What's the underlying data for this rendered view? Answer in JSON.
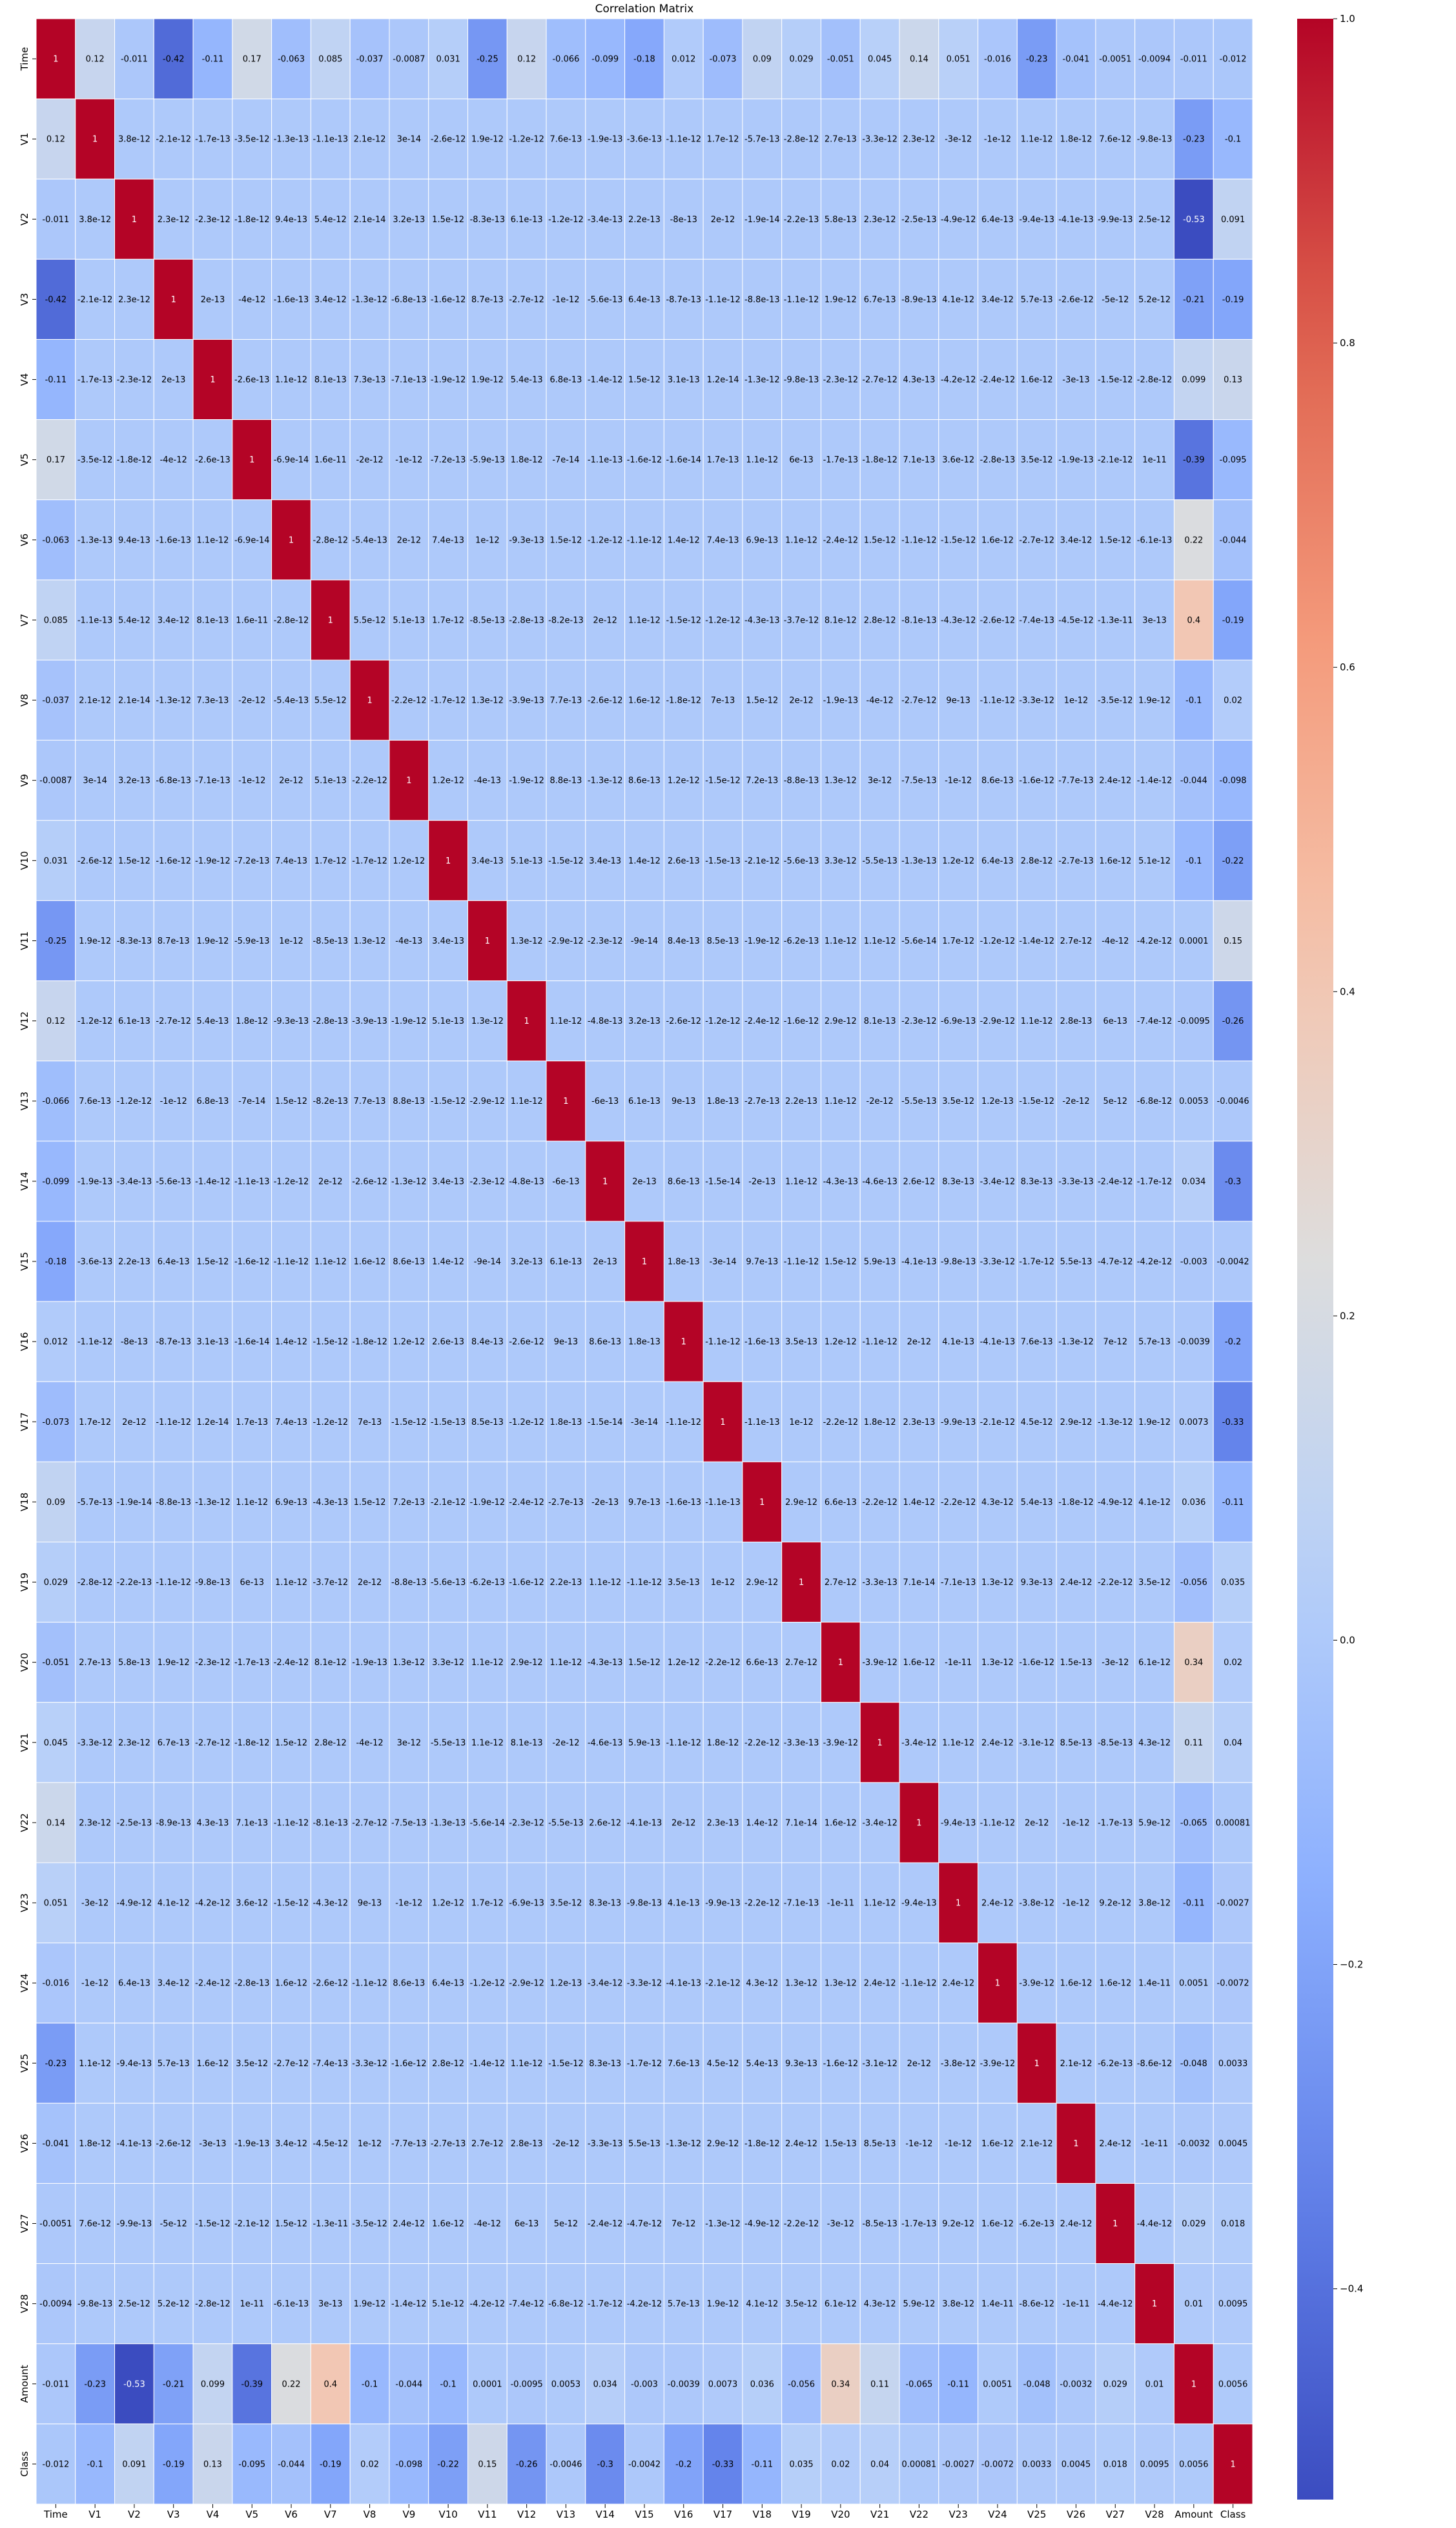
{
  "chart_data": {
    "type": "heatmap",
    "title": "Correlation Matrix",
    "xlabel": "",
    "ylabel": "",
    "labels": [
      "Time",
      "V1",
      "V2",
      "V3",
      "V4",
      "V5",
      "V6",
      "V7",
      "V8",
      "V9",
      "V10",
      "V11",
      "V12",
      "V13",
      "V14",
      "V15",
      "V16",
      "V17",
      "V18",
      "V19",
      "V20",
      "V21",
      "V22",
      "V23",
      "V24",
      "V25",
      "V26",
      "V27",
      "V28",
      "Amount",
      "Class"
    ],
    "colormap": "coolwarm",
    "vmin": -0.53,
    "vmax": 1,
    "colorbar_ticks": [
      1.0,
      0.8,
      0.6,
      0.4,
      0.2,
      0.0,
      -0.2,
      -0.4
    ],
    "colorbar_tick_labels": [
      "1.0",
      "0.8",
      "0.6",
      "0.4",
      "0.2",
      "0.0",
      "−0.2",
      "−0.4"
    ],
    "annotations": [
      [
        "1",
        "0.12",
        "-0.011",
        "-0.42",
        "-0.11",
        "0.17",
        "-0.063",
        "0.085",
        "-0.037",
        "-0.0087",
        "0.031",
        "-0.25",
        "0.12",
        "-0.066",
        "-0.099",
        "-0.18",
        "0.012",
        "-0.073",
        "0.09",
        "0.029",
        "-0.051",
        "0.045",
        "0.14",
        "0.051",
        "-0.016",
        "-0.23",
        "-0.041",
        "-0.0051",
        "-0.0094",
        "-0.011",
        "-0.012"
      ],
      [
        "0.12",
        "1",
        "3.8e-12",
        "-2.1e-12",
        "-1.7e-13",
        "-3.5e-12",
        "-1.3e-13",
        "-1.1e-13",
        "2.1e-12",
        "3e-14",
        "-2.6e-12",
        "1.9e-12",
        "-1.2e-12",
        "7.6e-13",
        "-1.9e-13",
        "-3.6e-13",
        "-1.1e-12",
        "1.7e-12",
        "-5.7e-13",
        "-2.8e-12",
        "2.7e-13",
        "-3.3e-12",
        "2.3e-12",
        "-3e-12",
        "-1e-12",
        "1.1e-12",
        "1.8e-12",
        "7.6e-12",
        "-9.8e-13",
        "-0.23",
        "-0.1"
      ],
      [
        "-0.011",
        "3.8e-12",
        "1",
        "2.3e-12",
        "-2.3e-12",
        "-1.8e-12",
        "9.4e-13",
        "5.4e-12",
        "2.1e-14",
        "3.2e-13",
        "1.5e-12",
        "-8.3e-13",
        "6.1e-13",
        "-1.2e-12",
        "-3.4e-13",
        "2.2e-13",
        "-8e-13",
        "2e-12",
        "-1.9e-14",
        "-2.2e-13",
        "5.8e-13",
        "2.3e-12",
        "-2.5e-13",
        "-4.9e-12",
        "6.4e-13",
        "-9.4e-13",
        "-4.1e-13",
        "-9.9e-13",
        "2.5e-12",
        "-0.53",
        "0.091"
      ],
      [
        "-0.42",
        "-2.1e-12",
        "2.3e-12",
        "1",
        "2e-13",
        "-4e-12",
        "-1.6e-13",
        "3.4e-12",
        "-1.3e-12",
        "-6.8e-13",
        "-1.6e-12",
        "8.7e-13",
        "-2.7e-12",
        "-1e-12",
        "-5.6e-13",
        "6.4e-13",
        "-8.7e-13",
        "-1.1e-12",
        "-8.8e-13",
        "-1.1e-12",
        "1.9e-12",
        "6.7e-13",
        "-8.9e-13",
        "4.1e-12",
        "3.4e-12",
        "5.7e-13",
        "-2.6e-12",
        "-5e-12",
        "5.2e-12",
        "-0.21",
        "-0.19"
      ],
      [
        "-0.11",
        "-1.7e-13",
        "-2.3e-12",
        "2e-13",
        "1",
        "-2.6e-13",
        "1.1e-12",
        "8.1e-13",
        "7.3e-13",
        "-7.1e-13",
        "-1.9e-12",
        "1.9e-12",
        "5.4e-13",
        "6.8e-13",
        "-1.4e-12",
        "1.5e-12",
        "3.1e-13",
        "1.2e-14",
        "-1.3e-12",
        "-9.8e-13",
        "-2.3e-12",
        "-2.7e-12",
        "4.3e-13",
        "-4.2e-12",
        "-2.4e-12",
        "1.6e-12",
        "-3e-13",
        "-1.5e-12",
        "-2.8e-12",
        "0.099",
        "0.13"
      ],
      [
        "0.17",
        "-3.5e-12",
        "-1.8e-12",
        "-4e-12",
        "-2.6e-13",
        "1",
        "-6.9e-14",
        "1.6e-11",
        "-2e-12",
        "-1e-12",
        "-7.2e-13",
        "-5.9e-13",
        "1.8e-12",
        "-7e-14",
        "-1.1e-13",
        "-1.6e-12",
        "-1.6e-14",
        "1.7e-13",
        "1.1e-12",
        "6e-13",
        "-1.7e-13",
        "-1.8e-12",
        "7.1e-13",
        "3.6e-12",
        "-2.8e-13",
        "3.5e-12",
        "-1.9e-13",
        "-2.1e-12",
        "1e-11",
        "-0.39",
        "-0.095"
      ],
      [
        "-0.063",
        "-1.3e-13",
        "9.4e-13",
        "-1.6e-13",
        "1.1e-12",
        "-6.9e-14",
        "1",
        "-2.8e-12",
        "-5.4e-13",
        "2e-12",
        "7.4e-13",
        "1e-12",
        "-9.3e-13",
        "1.5e-12",
        "-1.2e-12",
        "-1.1e-12",
        "1.4e-12",
        "7.4e-13",
        "6.9e-13",
        "1.1e-12",
        "-2.4e-12",
        "1.5e-12",
        "-1.1e-12",
        "-1.5e-12",
        "1.6e-12",
        "-2.7e-12",
        "3.4e-12",
        "1.5e-12",
        "-6.1e-13",
        "0.22",
        "-0.044"
      ],
      [
        "0.085",
        "-1.1e-13",
        "5.4e-12",
        "3.4e-12",
        "8.1e-13",
        "1.6e-11",
        "-2.8e-12",
        "1",
        "5.5e-12",
        "5.1e-13",
        "1.7e-12",
        "-8.5e-13",
        "-2.8e-13",
        "-8.2e-13",
        "2e-12",
        "1.1e-12",
        "-1.5e-12",
        "-1.2e-12",
        "-4.3e-13",
        "-3.7e-12",
        "8.1e-12",
        "2.8e-12",
        "-8.1e-13",
        "-4.3e-12",
        "-2.6e-12",
        "-7.4e-13",
        "-4.5e-12",
        "-1.3e-11",
        "3e-13",
        "0.4",
        "-0.19"
      ],
      [
        "-0.037",
        "2.1e-12",
        "2.1e-14",
        "-1.3e-12",
        "7.3e-13",
        "-2e-12",
        "-5.4e-13",
        "5.5e-12",
        "1",
        "-2.2e-12",
        "-1.7e-12",
        "1.3e-12",
        "-3.9e-13",
        "7.7e-13",
        "-2.6e-12",
        "1.6e-12",
        "-1.8e-12",
        "7e-13",
        "1.5e-12",
        "2e-12",
        "-1.9e-13",
        "-4e-12",
        "-2.7e-12",
        "9e-13",
        "-1.1e-12",
        "-3.3e-12",
        "1e-12",
        "-3.5e-12",
        "1.9e-12",
        "-0.1",
        "0.02"
      ],
      [
        "-0.0087",
        "3e-14",
        "3.2e-13",
        "-6.8e-13",
        "-7.1e-13",
        "-1e-12",
        "2e-12",
        "5.1e-13",
        "-2.2e-12",
        "1",
        "1.2e-12",
        "-4e-13",
        "-1.9e-12",
        "8.8e-13",
        "-1.3e-12",
        "8.6e-13",
        "1.2e-12",
        "-1.5e-12",
        "7.2e-13",
        "-8.8e-13",
        "1.3e-12",
        "3e-12",
        "-7.5e-13",
        "-1e-12",
        "8.6e-13",
        "-1.6e-12",
        "-7.7e-13",
        "2.4e-12",
        "-1.4e-12",
        "-0.044",
        "-0.098"
      ],
      [
        "0.031",
        "-2.6e-12",
        "1.5e-12",
        "-1.6e-12",
        "-1.9e-12",
        "-7.2e-13",
        "7.4e-13",
        "1.7e-12",
        "-1.7e-12",
        "1.2e-12",
        "1",
        "3.4e-13",
        "5.1e-13",
        "-1.5e-12",
        "3.4e-13",
        "1.4e-12",
        "2.6e-13",
        "-1.5e-13",
        "-2.1e-12",
        "-5.6e-13",
        "3.3e-12",
        "-5.5e-13",
        "-1.3e-13",
        "1.2e-12",
        "6.4e-13",
        "2.8e-12",
        "-2.7e-13",
        "1.6e-12",
        "5.1e-12",
        "-0.1",
        "-0.22"
      ],
      [
        "-0.25",
        "1.9e-12",
        "-8.3e-13",
        "8.7e-13",
        "1.9e-12",
        "-5.9e-13",
        "1e-12",
        "-8.5e-13",
        "1.3e-12",
        "-4e-13",
        "3.4e-13",
        "1",
        "1.3e-12",
        "-2.9e-12",
        "-2.3e-12",
        "-9e-14",
        "8.4e-13",
        "8.5e-13",
        "-1.9e-12",
        "-6.2e-13",
        "1.1e-12",
        "1.1e-12",
        "-5.6e-14",
        "1.7e-12",
        "-1.2e-12",
        "-1.4e-12",
        "2.7e-12",
        "-4e-12",
        "-4.2e-12",
        "0.0001",
        "0.15"
      ],
      [
        "0.12",
        "-1.2e-12",
        "6.1e-13",
        "-2.7e-12",
        "5.4e-13",
        "1.8e-12",
        "-9.3e-13",
        "-2.8e-13",
        "-3.9e-13",
        "-1.9e-12",
        "5.1e-13",
        "1.3e-12",
        "1",
        "1.1e-12",
        "-4.8e-13",
        "3.2e-13",
        "-2.6e-12",
        "-1.2e-12",
        "-2.4e-12",
        "-1.6e-12",
        "2.9e-12",
        "8.1e-13",
        "-2.3e-12",
        "-6.9e-13",
        "-2.9e-12",
        "1.1e-12",
        "2.8e-13",
        "6e-13",
        "-7.4e-12",
        "-0.0095",
        "-0.26"
      ],
      [
        "-0.066",
        "7.6e-13",
        "-1.2e-12",
        "-1e-12",
        "6.8e-13",
        "-7e-14",
        "1.5e-12",
        "-8.2e-13",
        "7.7e-13",
        "8.8e-13",
        "-1.5e-12",
        "-2.9e-12",
        "1.1e-12",
        "1",
        "-6e-13",
        "6.1e-13",
        "9e-13",
        "1.8e-13",
        "-2.7e-13",
        "2.2e-13",
        "1.1e-12",
        "-2e-12",
        "-5.5e-13",
        "3.5e-12",
        "1.2e-13",
        "-1.5e-12",
        "-2e-12",
        "5e-12",
        "-6.8e-12",
        "0.0053",
        "-0.0046"
      ],
      [
        "-0.099",
        "-1.9e-13",
        "-3.4e-13",
        "-5.6e-13",
        "-1.4e-12",
        "-1.1e-13",
        "-1.2e-12",
        "2e-12",
        "-2.6e-12",
        "-1.3e-12",
        "3.4e-13",
        "-2.3e-12",
        "-4.8e-13",
        "-6e-13",
        "1",
        "2e-13",
        "8.6e-13",
        "-1.5e-14",
        "-2e-13",
        "1.1e-12",
        "-4.3e-13",
        "-4.6e-13",
        "2.6e-12",
        "8.3e-13",
        "-3.4e-12",
        "8.3e-13",
        "-3.3e-13",
        "-2.4e-12",
        "-1.7e-12",
        "0.034",
        "-0.3"
      ],
      [
        "-0.18",
        "-3.6e-13",
        "2.2e-13",
        "6.4e-13",
        "1.5e-12",
        "-1.6e-12",
        "-1.1e-12",
        "1.1e-12",
        "1.6e-12",
        "8.6e-13",
        "1.4e-12",
        "-9e-14",
        "3.2e-13",
        "6.1e-13",
        "2e-13",
        "1",
        "1.8e-13",
        "-3e-14",
        "9.7e-13",
        "-1.1e-12",
        "1.5e-12",
        "5.9e-13",
        "-4.1e-13",
        "-9.8e-13",
        "-3.3e-12",
        "-1.7e-12",
        "5.5e-13",
        "-4.7e-12",
        "-4.2e-12",
        "-0.003",
        "-0.0042"
      ],
      [
        "0.012",
        "-1.1e-12",
        "-8e-13",
        "-8.7e-13",
        "3.1e-13",
        "-1.6e-14",
        "1.4e-12",
        "-1.5e-12",
        "-1.8e-12",
        "1.2e-12",
        "2.6e-13",
        "8.4e-13",
        "-2.6e-12",
        "9e-13",
        "8.6e-13",
        "1.8e-13",
        "1",
        "-1.1e-12",
        "-1.6e-13",
        "3.5e-13",
        "1.2e-12",
        "-1.1e-12",
        "2e-12",
        "4.1e-13",
        "-4.1e-13",
        "7.6e-13",
        "-1.3e-12",
        "7e-12",
        "5.7e-13",
        "-0.0039",
        "-0.2"
      ],
      [
        "-0.073",
        "1.7e-12",
        "2e-12",
        "-1.1e-12",
        "1.2e-14",
        "1.7e-13",
        "7.4e-13",
        "-1.2e-12",
        "7e-13",
        "-1.5e-12",
        "-1.5e-13",
        "8.5e-13",
        "-1.2e-12",
        "1.8e-13",
        "-1.5e-14",
        "-3e-14",
        "-1.1e-12",
        "1",
        "-1.1e-13",
        "1e-12",
        "-2.2e-12",
        "1.8e-12",
        "2.3e-13",
        "-9.9e-13",
        "-2.1e-12",
        "4.5e-12",
        "2.9e-12",
        "-1.3e-12",
        "1.9e-12",
        "0.0073",
        "-0.33"
      ],
      [
        "0.09",
        "-5.7e-13",
        "-1.9e-14",
        "-8.8e-13",
        "-1.3e-12",
        "1.1e-12",
        "6.9e-13",
        "-4.3e-13",
        "1.5e-12",
        "7.2e-13",
        "-2.1e-12",
        "-1.9e-12",
        "-2.4e-12",
        "-2.7e-13",
        "-2e-13",
        "9.7e-13",
        "-1.6e-13",
        "-1.1e-13",
        "1",
        "2.9e-12",
        "6.6e-13",
        "-2.2e-12",
        "1.4e-12",
        "-2.2e-12",
        "4.3e-12",
        "5.4e-13",
        "-1.8e-12",
        "-4.9e-12",
        "4.1e-12",
        "0.036",
        "-0.11"
      ],
      [
        "0.029",
        "-2.8e-12",
        "-2.2e-13",
        "-1.1e-12",
        "-9.8e-13",
        "6e-13",
        "1.1e-12",
        "-3.7e-12",
        "2e-12",
        "-8.8e-13",
        "-5.6e-13",
        "-6.2e-13",
        "-1.6e-12",
        "2.2e-13",
        "1.1e-12",
        "-1.1e-12",
        "3.5e-13",
        "1e-12",
        "2.9e-12",
        "1",
        "2.7e-12",
        "-3.3e-13",
        "7.1e-14",
        "-7.1e-13",
        "1.3e-12",
        "9.3e-13",
        "2.4e-12",
        "-2.2e-12",
        "3.5e-12",
        "-0.056",
        "0.035"
      ],
      [
        "-0.051",
        "2.7e-13",
        "5.8e-13",
        "1.9e-12",
        "-2.3e-12",
        "-1.7e-13",
        "-2.4e-12",
        "8.1e-12",
        "-1.9e-13",
        "1.3e-12",
        "3.3e-12",
        "1.1e-12",
        "2.9e-12",
        "1.1e-12",
        "-4.3e-13",
        "1.5e-12",
        "1.2e-12",
        "-2.2e-12",
        "6.6e-13",
        "2.7e-12",
        "1",
        "-3.9e-12",
        "1.6e-12",
        "-1e-11",
        "1.3e-12",
        "-1.6e-12",
        "1.5e-13",
        "-3e-12",
        "6.1e-12",
        "0.34",
        "0.02"
      ],
      [
        "0.045",
        "-3.3e-12",
        "2.3e-12",
        "6.7e-13",
        "-2.7e-12",
        "-1.8e-12",
        "1.5e-12",
        "2.8e-12",
        "-4e-12",
        "3e-12",
        "-5.5e-13",
        "1.1e-12",
        "8.1e-13",
        "-2e-12",
        "-4.6e-13",
        "5.9e-13",
        "-1.1e-12",
        "1.8e-12",
        "-2.2e-12",
        "-3.3e-13",
        "-3.9e-12",
        "1",
        "-3.4e-12",
        "1.1e-12",
        "2.4e-12",
        "-3.1e-12",
        "8.5e-13",
        "-8.5e-13",
        "4.3e-12",
        "0.11",
        "0.04"
      ],
      [
        "0.14",
        "2.3e-12",
        "-2.5e-13",
        "-8.9e-13",
        "4.3e-13",
        "7.1e-13",
        "-1.1e-12",
        "-8.1e-13",
        "-2.7e-12",
        "-7.5e-13",
        "-1.3e-13",
        "-5.6e-14",
        "-2.3e-12",
        "-5.5e-13",
        "2.6e-12",
        "-4.1e-13",
        "2e-12",
        "2.3e-13",
        "1.4e-12",
        "7.1e-14",
        "1.6e-12",
        "-3.4e-12",
        "1",
        "-9.4e-13",
        "-1.1e-12",
        "2e-12",
        "-1e-12",
        "-1.7e-13",
        "5.9e-12",
        "-0.065",
        "0.00081"
      ],
      [
        "0.051",
        "-3e-12",
        "-4.9e-12",
        "4.1e-12",
        "-4.2e-12",
        "3.6e-12",
        "-1.5e-12",
        "-4.3e-12",
        "9e-13",
        "-1e-12",
        "1.2e-12",
        "1.7e-12",
        "-6.9e-13",
        "3.5e-12",
        "8.3e-13",
        "-9.8e-13",
        "4.1e-13",
        "-9.9e-13",
        "-2.2e-12",
        "-7.1e-13",
        "-1e-11",
        "1.1e-12",
        "-9.4e-13",
        "1",
        "2.4e-12",
        "-3.8e-12",
        "-1e-12",
        "9.2e-12",
        "3.8e-12",
        "-0.11",
        "-0.0027"
      ],
      [
        "-0.016",
        "-1e-12",
        "6.4e-13",
        "3.4e-12",
        "-2.4e-12",
        "-2.8e-13",
        "1.6e-12",
        "-2.6e-12",
        "-1.1e-12",
        "8.6e-13",
        "6.4e-13",
        "-1.2e-12",
        "-2.9e-12",
        "1.2e-13",
        "-3.4e-12",
        "-3.3e-12",
        "-4.1e-13",
        "-2.1e-12",
        "4.3e-12",
        "1.3e-12",
        "1.3e-12",
        "2.4e-12",
        "-1.1e-12",
        "2.4e-12",
        "1",
        "-3.9e-12",
        "1.6e-12",
        "1.6e-12",
        "1.4e-11",
        "0.0051",
        "-0.0072"
      ],
      [
        "-0.23",
        "1.1e-12",
        "-9.4e-13",
        "5.7e-13",
        "1.6e-12",
        "3.5e-12",
        "-2.7e-12",
        "-7.4e-13",
        "-3.3e-12",
        "-1.6e-12",
        "2.8e-12",
        "-1.4e-12",
        "1.1e-12",
        "-1.5e-12",
        "8.3e-13",
        "-1.7e-12",
        "7.6e-13",
        "4.5e-12",
        "5.4e-13",
        "9.3e-13",
        "-1.6e-12",
        "-3.1e-12",
        "2e-12",
        "-3.8e-12",
        "-3.9e-12",
        "1",
        "2.1e-12",
        "-6.2e-13",
        "-8.6e-12",
        "-0.048",
        "0.0033"
      ],
      [
        "-0.041",
        "1.8e-12",
        "-4.1e-13",
        "-2.6e-12",
        "-3e-13",
        "-1.9e-13",
        "3.4e-12",
        "-4.5e-12",
        "1e-12",
        "-7.7e-13",
        "-2.7e-13",
        "2.7e-12",
        "2.8e-13",
        "-2e-12",
        "-3.3e-13",
        "5.5e-13",
        "-1.3e-12",
        "2.9e-12",
        "-1.8e-12",
        "2.4e-12",
        "1.5e-13",
        "8.5e-13",
        "-1e-12",
        "-1e-12",
        "1.6e-12",
        "2.1e-12",
        "1",
        "2.4e-12",
        "-1e-11",
        "-0.0032",
        "0.0045"
      ],
      [
        "-0.0051",
        "7.6e-12",
        "-9.9e-13",
        "-5e-12",
        "-1.5e-12",
        "-2.1e-12",
        "1.5e-12",
        "-1.3e-11",
        "-3.5e-12",
        "2.4e-12",
        "1.6e-12",
        "-4e-12",
        "6e-13",
        "5e-12",
        "-2.4e-12",
        "-4.7e-12",
        "7e-12",
        "-1.3e-12",
        "-4.9e-12",
        "-2.2e-12",
        "-3e-12",
        "-8.5e-13",
        "-1.7e-13",
        "9.2e-12",
        "1.6e-12",
        "-6.2e-13",
        "2.4e-12",
        "1",
        "-4.4e-12",
        "0.029",
        "0.018"
      ],
      [
        "-0.0094",
        "-9.8e-13",
        "2.5e-12",
        "5.2e-12",
        "-2.8e-12",
        "1e-11",
        "-6.1e-13",
        "3e-13",
        "1.9e-12",
        "-1.4e-12",
        "5.1e-12",
        "-4.2e-12",
        "-7.4e-12",
        "-6.8e-12",
        "-1.7e-12",
        "-4.2e-12",
        "5.7e-13",
        "1.9e-12",
        "4.1e-12",
        "3.5e-12",
        "6.1e-12",
        "4.3e-12",
        "5.9e-12",
        "3.8e-12",
        "1.4e-11",
        "-8.6e-12",
        "-1e-11",
        "-4.4e-12",
        "1",
        "0.01",
        "0.0095"
      ],
      [
        "-0.011",
        "-0.23",
        "-0.53",
        "-0.21",
        "0.099",
        "-0.39",
        "0.22",
        "0.4",
        "-0.1",
        "-0.044",
        "-0.1",
        "0.0001",
        "-0.0095",
        "0.0053",
        "0.034",
        "-0.003",
        "-0.0039",
        "0.0073",
        "0.036",
        "-0.056",
        "0.34",
        "0.11",
        "-0.065",
        "-0.11",
        "0.0051",
        "-0.048",
        "-0.0032",
        "0.029",
        "0.01",
        "1",
        "0.0056"
      ],
      [
        "-0.012",
        "-0.1",
        "0.091",
        "-0.19",
        "0.13",
        "-0.095",
        "-0.044",
        "-0.19",
        "0.02",
        "-0.098",
        "-0.22",
        "0.15",
        "-0.26",
        "-0.0046",
        "-0.3",
        "-0.0042",
        "-0.2",
        "-0.33",
        "-0.11",
        "0.035",
        "0.02",
        "0.04",
        "0.00081",
        "-0.0027",
        "-0.0072",
        "0.0033",
        "0.0045",
        "0.018",
        "0.0095",
        "0.0056",
        "1"
      ]
    ]
  }
}
